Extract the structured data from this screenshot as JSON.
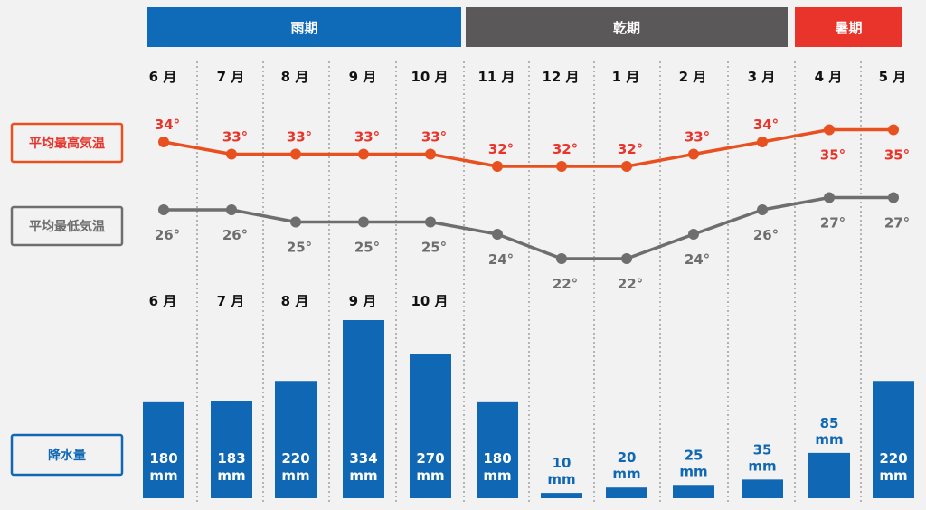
{
  "colors": {
    "rainy": "#0f6bb8",
    "dry": "#5a5859",
    "hot": "#e8342a",
    "high": "#e8511f",
    "high_text": "#e8342a",
    "low": "#6e6e6e",
    "rain": "#1068b4"
  },
  "seasons": [
    {
      "label": "雨期",
      "months": 5,
      "color": "#0f6bb8"
    },
    {
      "label": "乾期",
      "months": 5,
      "color": "#5a5859"
    },
    {
      "label": "暑期",
      "months": 2,
      "color": "#e8342a"
    }
  ],
  "side_labels": {
    "high": "平均最高気温",
    "low": "平均最低気温",
    "rain": "降水量"
  },
  "chart_data": {
    "type": "line+bar",
    "categories": [
      "6 月",
      "7 月",
      "8 月",
      "9 月",
      "10 月",
      "11 月",
      "12 月",
      "1 月",
      "2 月",
      "3 月",
      "4 月",
      "5 月"
    ],
    "rain_category_labels": [
      "6 月",
      "7 月",
      "8 月",
      "9 月",
      "10 月"
    ],
    "series": [
      {
        "name": "平均最高気温",
        "values": [
          34,
          33,
          33,
          33,
          33,
          32,
          32,
          32,
          33,
          34,
          35,
          35
        ],
        "labels": [
          "34°",
          "33°",
          "33°",
          "33°",
          "33°",
          "32°",
          "32°",
          "32°",
          "33°",
          "34°",
          "35°",
          "35°"
        ]
      },
      {
        "name": "平均最低気温",
        "values": [
          26,
          26,
          25,
          25,
          25,
          24,
          22,
          22,
          24,
          26,
          27,
          27
        ],
        "labels": [
          "26°",
          "26°",
          "25°",
          "25°",
          "25°",
          "24°",
          "22°",
          "22°",
          "24°",
          "26°",
          "27°",
          "27°"
        ]
      },
      {
        "name": "降水量",
        "values": [
          180,
          183,
          220,
          334,
          270,
          180,
          10,
          20,
          25,
          35,
          85,
          220
        ],
        "labels": [
          "180",
          "183",
          "220",
          "334",
          "270",
          "180",
          "10",
          "20",
          "25",
          "35",
          "85",
          "220"
        ],
        "unit": "mm"
      }
    ]
  }
}
